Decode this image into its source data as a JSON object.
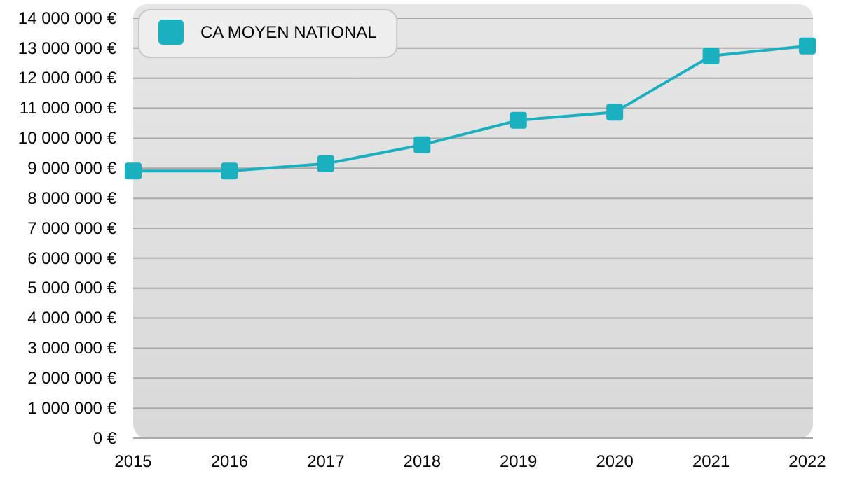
{
  "chart_data": {
    "type": "line",
    "categories": [
      "2015",
      "2016",
      "2017",
      "2018",
      "2019",
      "2020",
      "2021",
      "2022"
    ],
    "series": [
      {
        "name": "CA MOYEN NATIONAL",
        "color": "#1ab0c0",
        "values": [
          8910000,
          8910000,
          9150000,
          9780000,
          10600000,
          10870000,
          12740000,
          13070000
        ]
      }
    ],
    "ylim": [
      0,
      14000000
    ],
    "yticks": [
      {
        "value": 0,
        "label": "0 €"
      },
      {
        "value": 1000000,
        "label": "1 000 000 €"
      },
      {
        "value": 2000000,
        "label": "2 000 000 €"
      },
      {
        "value": 3000000,
        "label": "3 000 000 €"
      },
      {
        "value": 4000000,
        "label": "4 000 000 €"
      },
      {
        "value": 5000000,
        "label": "5 000 000 €"
      },
      {
        "value": 6000000,
        "label": "6 000 000 €"
      },
      {
        "value": 7000000,
        "label": "7 000 000 €"
      },
      {
        "value": 8000000,
        "label": "8 000 000 €"
      },
      {
        "value": 9000000,
        "label": "9 000 000 €"
      },
      {
        "value": 10000000,
        "label": "10 000 000 €"
      },
      {
        "value": 11000000,
        "label": "11 000 000 €"
      },
      {
        "value": 12000000,
        "label": "12 000 000 €"
      },
      {
        "value": 13000000,
        "label": "13 000 000 €"
      },
      {
        "value": 14000000,
        "label": "14 000 000 €"
      }
    ],
    "grid": "y",
    "legend": "top left",
    "marker": "square",
    "line_style": "solid"
  }
}
